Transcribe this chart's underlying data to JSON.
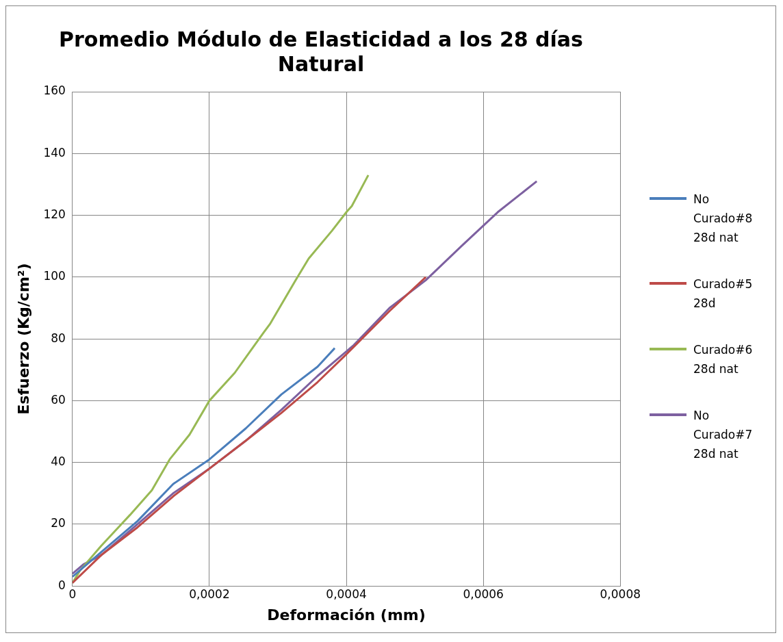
{
  "chart_data": {
    "type": "line",
    "title": "Promedio Módulo de Elasticidad a los 28 días\nNatural",
    "xlabel": "Deformación (mm)",
    "ylabel": "Esfuerzo (Kg/cm²)",
    "xlim": [
      0,
      0.0008
    ],
    "xticks": [
      0,
      {
        "value": 0.0002,
        "label": "0,0002"
      },
      {
        "value": 0.0004,
        "label": "0,0004"
      },
      {
        "value": 0.0006,
        "label": "0,0006"
      },
      {
        "value": 0.0008,
        "label": "0,0008"
      }
    ],
    "ylim": [
      0,
      160
    ],
    "yticks": [
      0,
      20,
      40,
      60,
      80,
      100,
      120,
      140,
      160
    ],
    "grid": true,
    "legend": "right",
    "marker": "none",
    "line_style": "solid",
    "series": [
      {
        "name": "No Curado#8 28d nat",
        "color": "#4a7ebb",
        "x": [
          0,
          4.2e-05,
          9.5e-05,
          0.000147,
          0.0002,
          0.000253,
          0.000305,
          0.000358,
          0.000383
        ],
        "values": [
          3,
          11,
          21,
          33,
          41,
          51,
          62,
          71,
          77
        ]
      },
      {
        "name": "Curado#5 28d",
        "color": "#be4b48",
        "x": [
          0,
          4.2e-05,
          9.5e-05,
          0.000147,
          0.0002,
          0.000253,
          0.000305,
          0.000358,
          0.0004,
          0.000463,
          0.000516
        ],
        "values": [
          1,
          10,
          19,
          29,
          38,
          47,
          56,
          66,
          75,
          89,
          100
        ]
      },
      {
        "name": "Curado#6 28d nat",
        "color": "#98b954",
        "x": [
          0,
          1.1e-05,
          4.2e-05,
          8.4e-05,
          0.000116,
          0.000142,
          0.000171,
          0.0002,
          0.000237,
          0.000279,
          0.000289,
          0.000326,
          0.000345,
          0.000379,
          0.0004,
          0.000408,
          0.000432
        ],
        "values": [
          1,
          5,
          13,
          23,
          31,
          41,
          49,
          60,
          69,
          82,
          85,
          99,
          106,
          115,
          121,
          123,
          133
        ]
      },
      {
        "name": "No Curado#7 28d nat",
        "color": "#7d60a0",
        "x": [
          0,
          1.6e-05,
          4.2e-05,
          9.5e-05,
          0.000147,
          0.0002,
          0.000253,
          0.000305,
          0.000358,
          0.000411,
          0.000463,
          0.000516,
          0.000568,
          0.000621,
          0.000678
        ],
        "values": [
          4,
          7,
          10,
          20,
          30,
          38,
          47,
          57,
          68,
          78,
          90,
          99,
          110,
          121,
          131
        ]
      }
    ]
  }
}
